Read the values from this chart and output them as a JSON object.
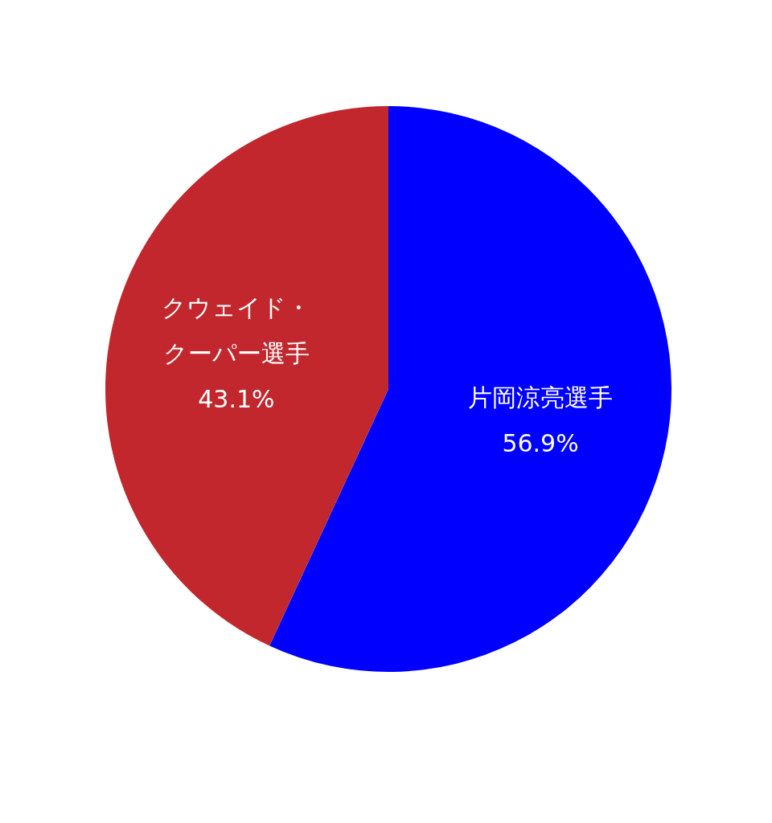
{
  "chart_data": {
    "type": "pie",
    "categories": [
      "片岡涼亮選手",
      "クウェイド・クーパー選手"
    ],
    "values": [
      56.9,
      43.1
    ],
    "colors": [
      "#0000ff",
      "#c1272d"
    ],
    "value_labels": [
      "56.9%",
      "43.1%"
    ],
    "legend": false
  }
}
